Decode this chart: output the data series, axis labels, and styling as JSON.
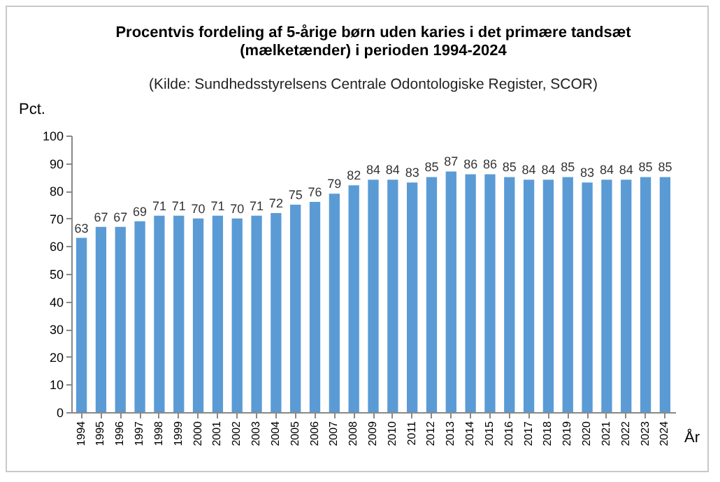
{
  "chart_data": {
    "type": "bar",
    "title": "Procentvis fordeling af 5-årige børn uden karies i det primære tandsæt (mælketænder) i perioden 1994-2024",
    "annotations": [
      "(Kilde: Sundhedsstyrelsens Centrale Odontologiske Register, SCOR)"
    ],
    "xlabel": "År",
    "ylabel": "Pct.",
    "categories": [
      "1994",
      "1995",
      "1996",
      "1997",
      "1998",
      "1999",
      "2000",
      "2001",
      "2002",
      "2003",
      "2004",
      "2005",
      "2006",
      "2007",
      "2008",
      "2009",
      "2010",
      "2011",
      "2012",
      "2013",
      "2014",
      "2015",
      "2016",
      "2017",
      "2018",
      "2019",
      "2020",
      "2021",
      "2022",
      "2023",
      "2024"
    ],
    "values": [
      63,
      67,
      67,
      69,
      71,
      71,
      70,
      71,
      70,
      71,
      72,
      75,
      76,
      79,
      82,
      84,
      84,
      83,
      85,
      87,
      86,
      86,
      85,
      84,
      84,
      85,
      83,
      84,
      84,
      85,
      85
    ],
    "color": "#5b9bd5",
    "ylim": [
      0,
      100
    ],
    "yticks": [
      0,
      10,
      20,
      30,
      40,
      50,
      60,
      70,
      80,
      90,
      100
    ],
    "grid": false,
    "data_labels": true
  }
}
